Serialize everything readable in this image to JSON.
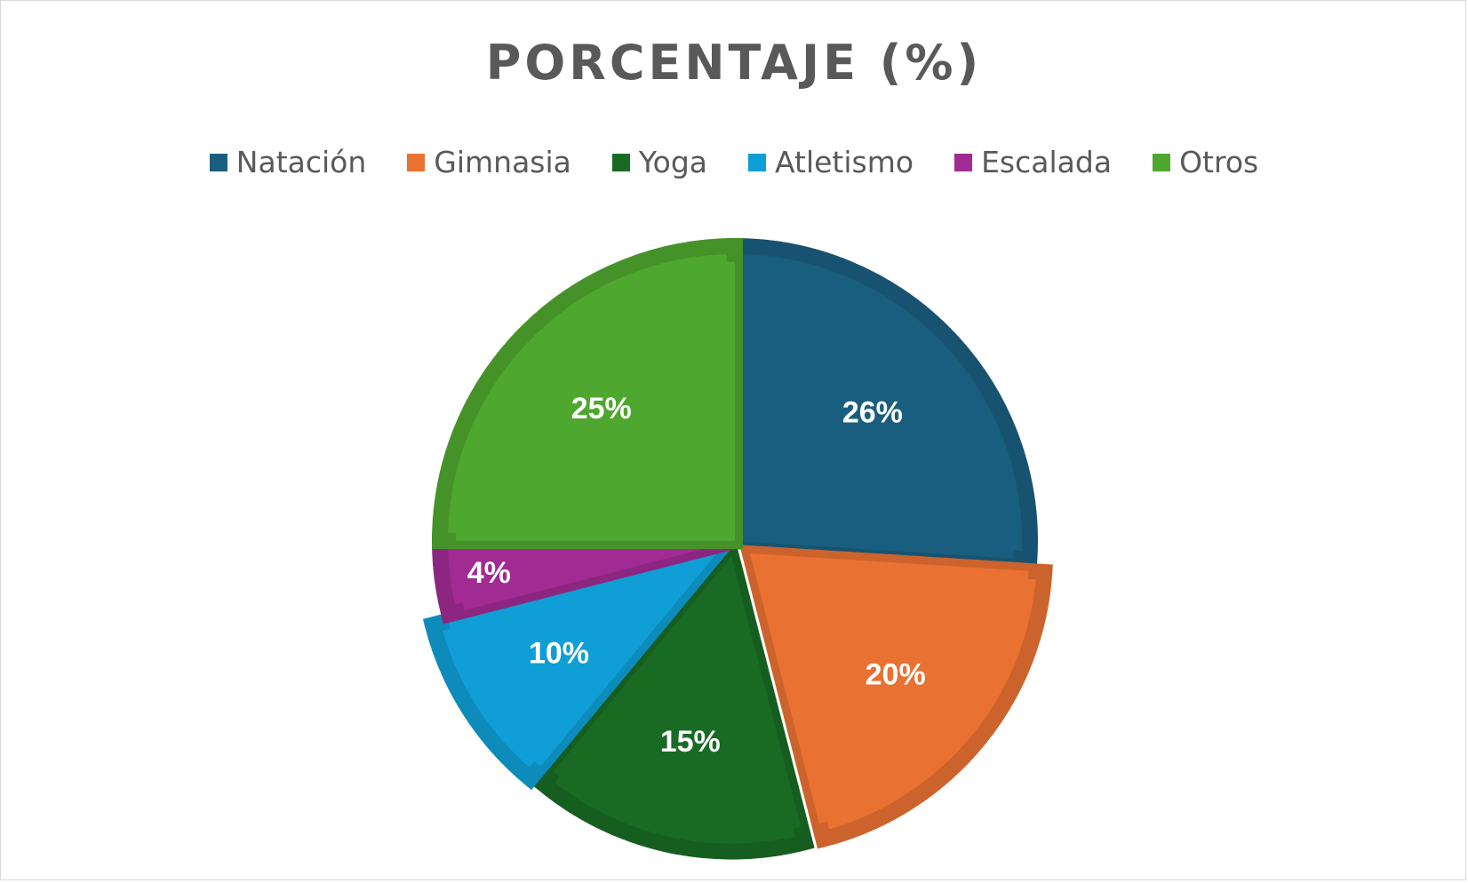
{
  "chart_data": {
    "type": "pie",
    "title": "PORCENTAJE (%)",
    "legend_position": "top",
    "categories": [
      "Natación",
      "Gimnasia",
      "Yoga",
      "Atletismo",
      "Escalada",
      "Otros"
    ],
    "values": [
      26,
      20,
      15,
      10,
      4,
      25
    ],
    "labels": [
      "26%",
      "20%",
      "15%",
      "10%",
      "4%",
      "25%"
    ],
    "colors": [
      "#1a5e7f",
      "#e97132",
      "#196b24",
      "#0f9ed5",
      "#a02b93",
      "#4ea72e"
    ]
  }
}
